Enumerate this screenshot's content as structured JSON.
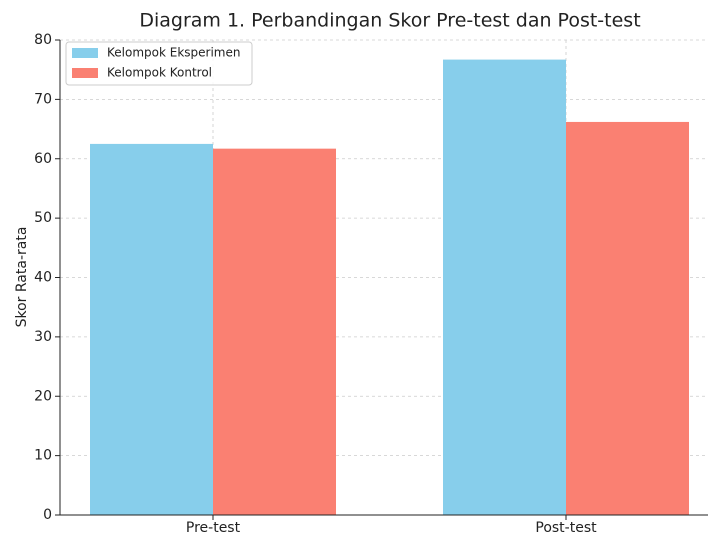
{
  "chart_data": {
    "type": "bar",
    "title": "Diagram 1. Perbandingan Skor Pre-test dan Post-test",
    "y_label": "Skor Rata-rata",
    "categories": [
      "Pre-test",
      "Post-test"
    ],
    "series": [
      {
        "name": "Kelompok Eksperimen",
        "color": "#87ceeb",
        "values": [
          62.5,
          76.7
        ]
      },
      {
        "name": "Kelompok Kontrol",
        "color": "#fa8072",
        "values": [
          61.7,
          66.2
        ]
      }
    ],
    "ylim": [
      0,
      80
    ],
    "yticks": [
      0,
      10,
      20,
      30,
      40,
      50,
      60,
      70,
      80
    ],
    "grid": true,
    "legend": "upper left"
  }
}
